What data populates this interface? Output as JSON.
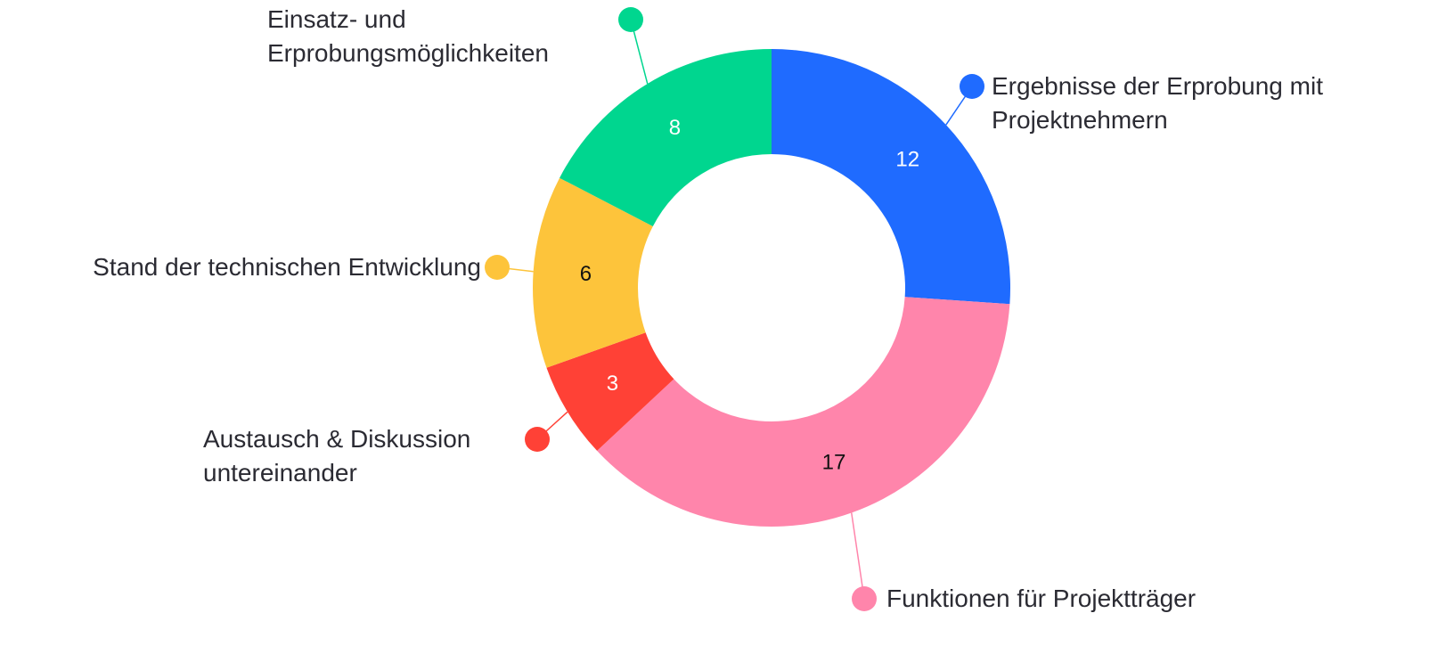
{
  "chart_data": {
    "type": "donut",
    "categories": [
      "Ergebnisse der Erprobung mit Projektnehmern",
      "Funktionen für Projektträger",
      "Austausch & Diskussion untereinander",
      "Stand der technischen Entwicklung",
      "Einsatz- und Erprobungsmöglichkeiten"
    ],
    "values": [
      12,
      17,
      3,
      6,
      8
    ],
    "colors": [
      "#1f6bff",
      "#ff85ab",
      "#ff4136",
      "#fdc43b",
      "#00d68f"
    ]
  }
}
